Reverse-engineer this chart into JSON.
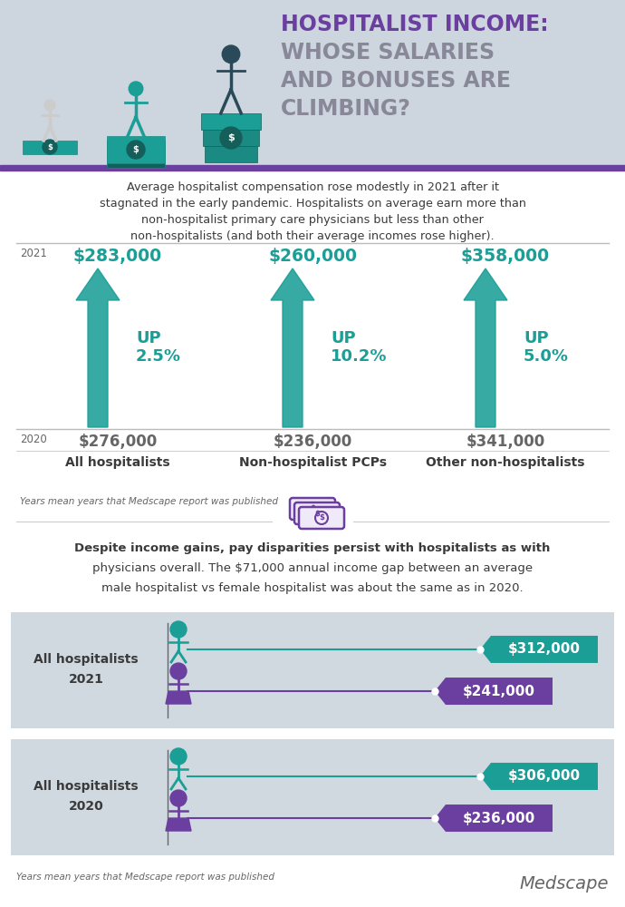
{
  "bg_color_top": "#cdd5de",
  "bg_color_white": "#ffffff",
  "bg_color_section": "#d0d8e0",
  "teal": "#1a9e96",
  "purple": "#6b3fa0",
  "dark_gray": "#3a3a3a",
  "gray": "#666666",
  "light_gray": "#aaaaaa",
  "title_line1": "HOSPITALIST INCOME:",
  "title_line2": "WHOSE SALARIES",
  "title_line3": "AND BONUSES ARE",
  "title_line4": "CLIMBING?",
  "subtitle": "Average hospitalist compensation rose modestly in 2021 after it\nstagnated in the early pandemic. Hospitalists on average earn more than\nnon-hospitalist primary care physicians but less than other\nnon-hospitalists (and both their average incomes rose higher).",
  "year2021": "2021",
  "year2020": "2020",
  "col1_2021": "$283,000",
  "col2_2021": "$260,000",
  "col3_2021": "$358,000",
  "col1_2020": "$276,000",
  "col2_2020": "$236,000",
  "col3_2020": "$341,000",
  "col1_up": "UP",
  "col2_up": "UP",
  "col3_up": "UP",
  "col1_pct": "2.5%",
  "col2_pct": "10.2%",
  "col3_pct": "5.0%",
  "col1_label": "All hospitalists",
  "col2_label": "Non-hospitalist PCPs",
  "col3_label": "Other non-hospitalists",
  "footnote1": "Years mean years that Medscape report was published",
  "gap_text_line1": "Despite income gains, pay disparities persist with hospitalists as with",
  "gap_text_line2": "physicians overall. The $71,000 annual income gap between an average",
  "gap_text_line3": "male hospitalist vs female hospitalist was about the same as in 2020.",
  "row1_label_line1": "All hospitalists",
  "row1_label_line2": "2021",
  "row2_label_line1": "All hospitalists",
  "row2_label_line2": "2020",
  "male_2021": "$312,000",
  "female_2021": "$241,000",
  "male_2020": "$306,000",
  "female_2020": "$236,000",
  "footnote2": "Years mean years that Medscape report was published",
  "medscape": "Medscape"
}
